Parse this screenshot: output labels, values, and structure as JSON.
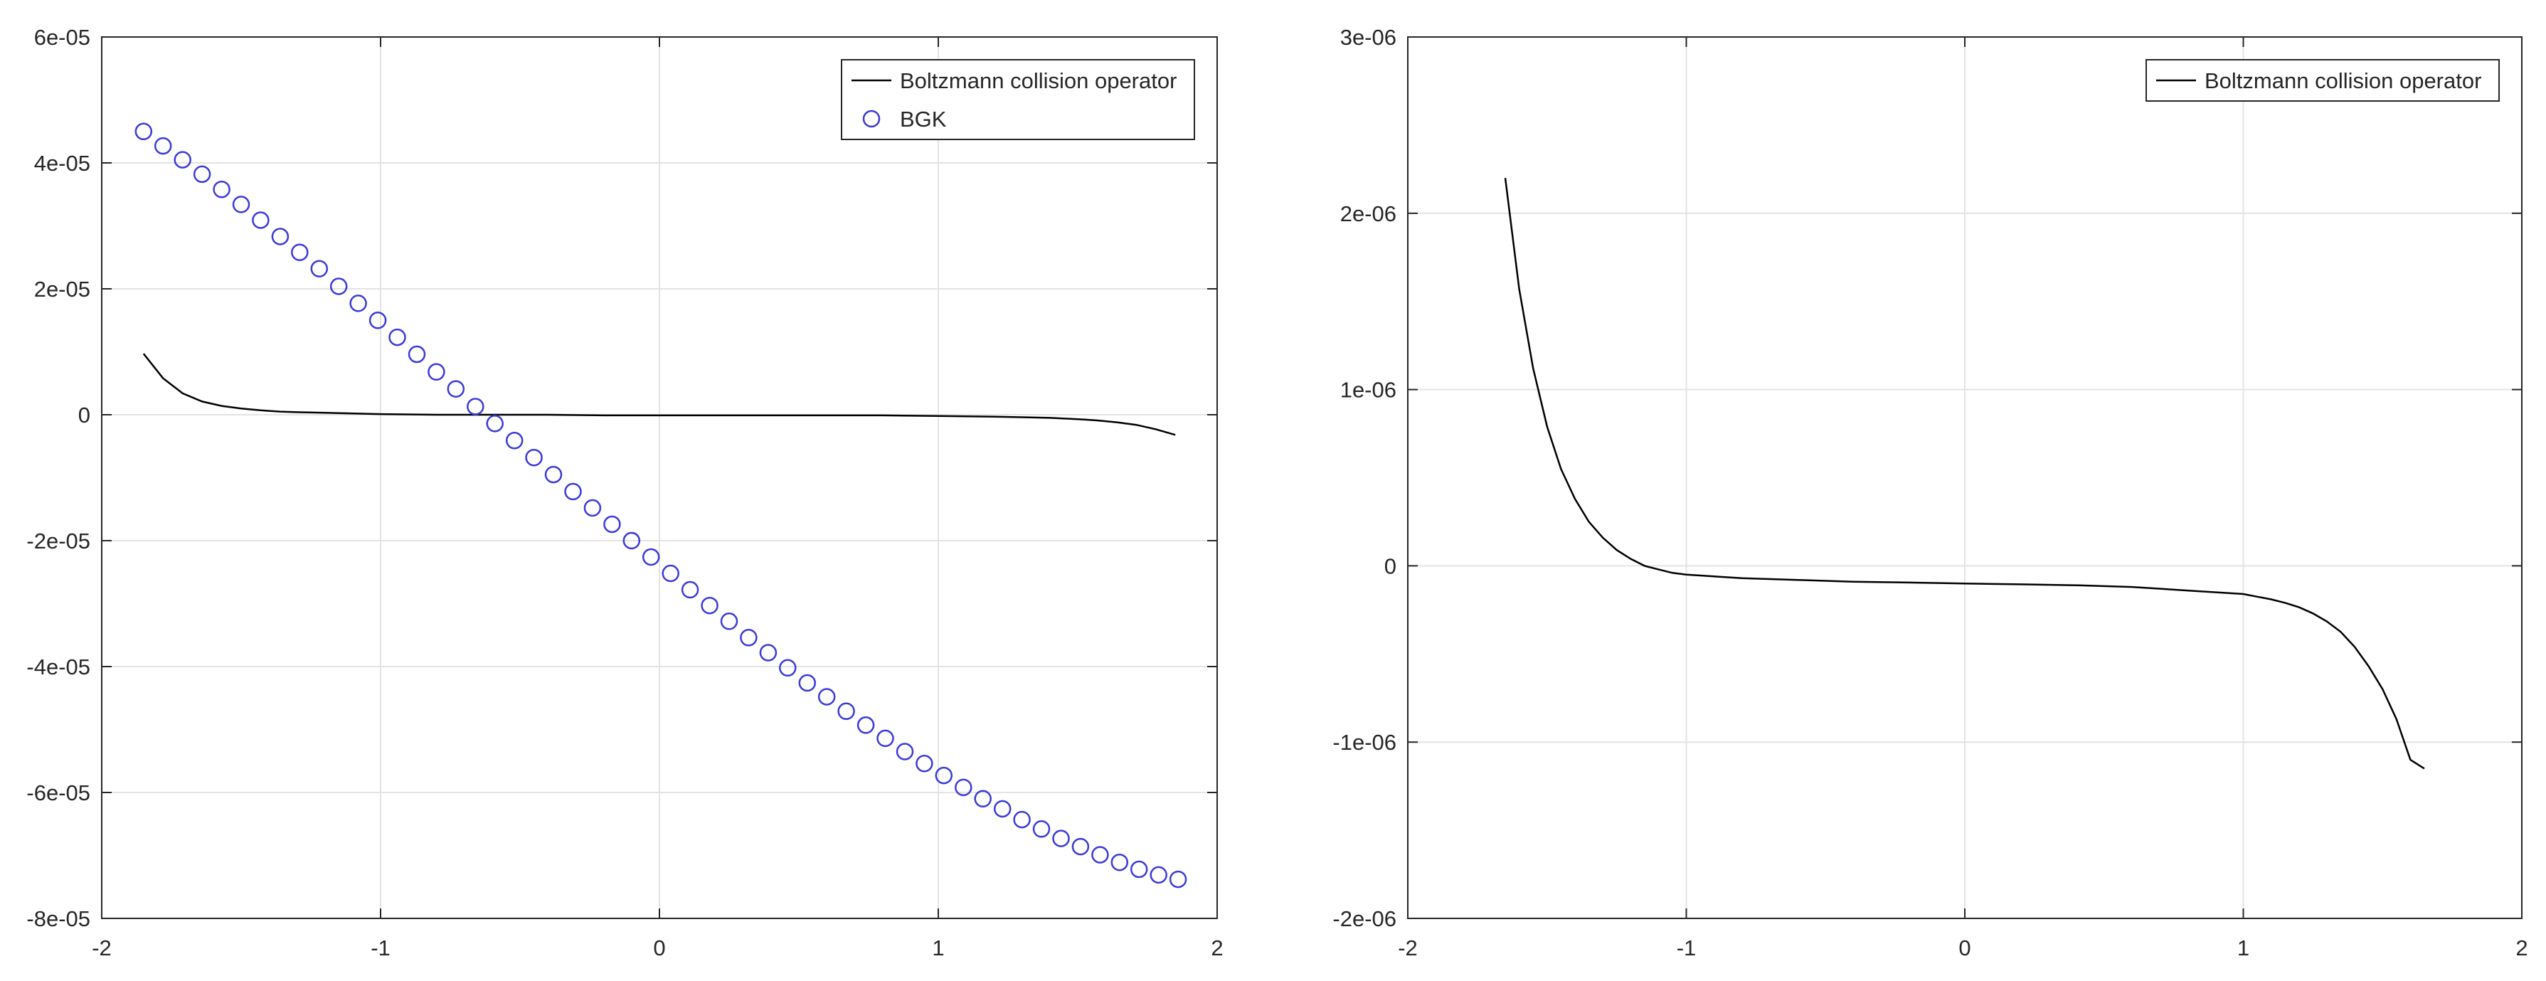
{
  "chart_data": [
    {
      "type": "line",
      "title": "",
      "xlabel": "",
      "ylabel": "",
      "xlim": [
        -2,
        2
      ],
      "ylim": [
        -8e-05,
        6e-05
      ],
      "xticks": [
        -2,
        -1,
        0,
        1,
        2
      ],
      "xtick_labels": [
        "-2",
        "-1",
        "0",
        "1",
        "2"
      ],
      "yticks": [
        -8e-05,
        -6e-05,
        -4e-05,
        -2e-05,
        0,
        2e-05,
        4e-05,
        6e-05
      ],
      "ytick_labels": [
        "-8e-05",
        "-6e-05",
        "-4e-05",
        "-2e-05",
        "0",
        "2e-05",
        "4e-05",
        "6e-05"
      ],
      "grid": true,
      "legend": "top-right",
      "series": [
        {
          "name": "Boltzmann collision operator",
          "style": "line",
          "color": "#000000",
          "x": [
            -1.85,
            -1.78,
            -1.71,
            -1.64,
            -1.57,
            -1.5,
            -1.43,
            -1.36,
            -1.29,
            -1.2,
            -1.0,
            -0.8,
            -0.6,
            -0.4,
            -0.2,
            0.0,
            0.2,
            0.4,
            0.6,
            0.8,
            1.0,
            1.2,
            1.3,
            1.4,
            1.5,
            1.57,
            1.64,
            1.71,
            1.78,
            1.85
          ],
          "y": [
            9.7e-06,
            5.8e-06,
            3.4e-06,
            2.1e-06,
            1.4e-06,
            1e-06,
            7e-07,
            5e-07,
            4e-07,
            3e-07,
            1e-07,
            0.0,
            0.0,
            0.0,
            -1e-07,
            -1e-07,
            -1e-07,
            -1e-07,
            -1e-07,
            -1e-07,
            -2e-07,
            -3e-07,
            -4e-07,
            -5e-07,
            -7e-07,
            -9e-07,
            -1.2e-06,
            -1.6e-06,
            -2.3e-06,
            -3.2e-06
          ]
        },
        {
          "name": "BGK",
          "style": "markers",
          "marker": "circle",
          "color": "#3a3ad8",
          "x": [
            -1.85,
            -1.78,
            -1.71,
            -1.64,
            -1.57,
            -1.5,
            -1.43,
            -1.36,
            -1.29,
            -1.22,
            -1.15,
            -1.08,
            -1.01,
            -0.94,
            -0.87,
            -0.8,
            -0.73,
            -0.66,
            -0.59,
            -0.52,
            -0.45,
            -0.38,
            -0.31,
            -0.24,
            -0.17,
            -0.1,
            -0.03,
            0.04,
            0.11,
            0.18,
            0.25,
            0.32,
            0.39,
            0.46,
            0.53,
            0.6,
            0.67,
            0.74,
            0.81,
            0.88,
            0.95,
            1.02,
            1.09,
            1.16,
            1.23,
            1.3,
            1.37,
            1.44,
            1.51,
            1.58,
            1.65,
            1.72,
            1.79,
            1.86
          ],
          "y": [
            4.5e-05,
            4.27e-05,
            4.05e-05,
            3.82e-05,
            3.58e-05,
            3.34e-05,
            3.09e-05,
            2.83e-05,
            2.58e-05,
            2.32e-05,
            2.04e-05,
            1.77e-05,
            1.5e-05,
            1.23e-05,
            9.6e-06,
            6.8e-06,
            4.1e-06,
            1.3e-06,
            -1.4e-06,
            -4.1e-06,
            -6.8e-06,
            -9.5e-06,
            -1.22e-05,
            -1.48e-05,
            -1.74e-05,
            -2e-05,
            -2.26e-05,
            -2.52e-05,
            -2.78e-05,
            -3.03e-05,
            -3.28e-05,
            -3.54e-05,
            -3.78e-05,
            -4.02e-05,
            -4.26e-05,
            -4.48e-05,
            -4.71e-05,
            -4.93e-05,
            -5.14e-05,
            -5.35e-05,
            -5.54e-05,
            -5.73e-05,
            -5.92e-05,
            -6.1e-05,
            -6.26e-05,
            -6.43e-05,
            -6.58e-05,
            -6.73e-05,
            -6.86e-05,
            -6.99e-05,
            -7.11e-05,
            -7.22e-05,
            -7.31e-05,
            -7.38e-05
          ]
        }
      ]
    },
    {
      "type": "line",
      "title": "",
      "xlabel": "",
      "ylabel": "",
      "xlim": [
        -2,
        2
      ],
      "ylim": [
        -2e-06,
        3e-06
      ],
      "xticks": [
        -2,
        -1,
        0,
        1,
        2
      ],
      "xtick_labels": [
        "-2",
        "-1",
        "0",
        "1",
        "2"
      ],
      "yticks": [
        -2e-06,
        -1e-06,
        0,
        1e-06,
        2e-06,
        3e-06
      ],
      "ytick_labels": [
        "-2e-06",
        "-1e-06",
        "0",
        "1e-06",
        "2e-06",
        "3e-06"
      ],
      "grid": true,
      "legend": "top-right",
      "series": [
        {
          "name": "Boltzmann collision operator",
          "style": "line",
          "color": "#000000",
          "x": [
            -1.65,
            -1.6,
            -1.55,
            -1.5,
            -1.45,
            -1.4,
            -1.35,
            -1.3,
            -1.25,
            -1.2,
            -1.15,
            -1.1,
            -1.05,
            -1.0,
            -0.9,
            -0.8,
            -0.6,
            -0.4,
            -0.2,
            0.0,
            0.2,
            0.4,
            0.6,
            0.8,
            1.0,
            1.05,
            1.1,
            1.15,
            1.2,
            1.25,
            1.3,
            1.35,
            1.4,
            1.45,
            1.5,
            1.55,
            1.6,
            1.65
          ],
          "y": [
            2.2e-06,
            1.57e-06,
            1.12e-06,
            7.9e-07,
            5.5e-07,
            3.8e-07,
            2.5e-07,
            1.6e-07,
            9e-08,
            4e-08,
            0.0,
            -2e-08,
            -4e-08,
            -5e-08,
            -6e-08,
            -7e-08,
            -8e-08,
            -9e-08,
            -9.5e-08,
            -1e-07,
            -1.05e-07,
            -1.1e-07,
            -1.2e-07,
            -1.4e-07,
            -1.6e-07,
            -1.75e-07,
            -1.9e-07,
            -2.1e-07,
            -2.35e-07,
            -2.7e-07,
            -3.15e-07,
            -3.75e-07,
            -4.6e-07,
            -5.7e-07,
            -7e-07,
            -8.7e-07,
            -1.1e-06,
            -1.15e-06
          ]
        }
      ]
    }
  ]
}
